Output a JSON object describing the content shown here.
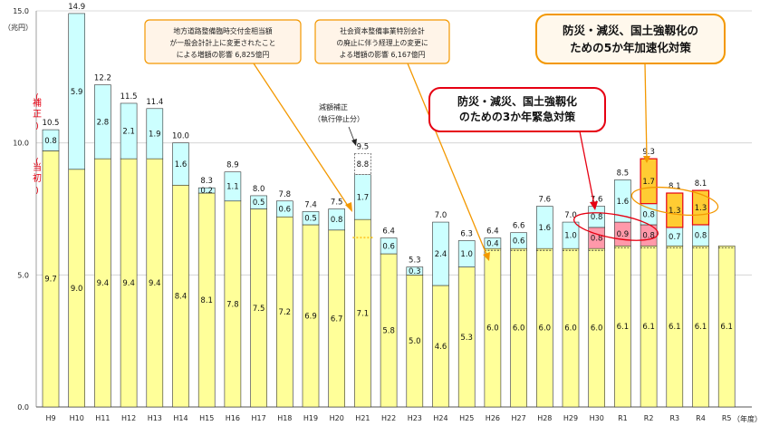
{
  "chart_data": {
    "type": "bar",
    "title": "",
    "y_unit": "（兆円）",
    "x_suffix": "（年度）",
    "ylim": [
      0,
      15
    ],
    "yticks": [
      "0.0",
      "5.0",
      "10.0",
      "15.0"
    ],
    "categories": [
      "H9",
      "H10",
      "H11",
      "H12",
      "H13",
      "H14",
      "H15",
      "H16",
      "H17",
      "H18",
      "H19",
      "H20",
      "H21",
      "H22",
      "H23",
      "H24",
      "H25",
      "H26",
      "H27",
      "H28",
      "H29",
      "H30",
      "R1",
      "R2",
      "R3",
      "R4",
      "R5"
    ],
    "totals": [
      "10.5",
      "14.9",
      "12.2",
      "11.5",
      "11.4",
      "10.0",
      "8.3",
      "8.9",
      "8.0",
      "7.8",
      "7.4",
      "7.5",
      "9.5",
      "6.4",
      "5.3",
      "7.0",
      "6.3",
      "6.4",
      "6.6",
      "7.6",
      "7.0",
      "7.6",
      "8.5",
      "9.3",
      "8.1",
      "8.1",
      ""
    ],
    "series": [
      {
        "name": "当初",
        "values": [
          9.7,
          9.0,
          9.4,
          9.4,
          9.4,
          8.4,
          8.1,
          7.8,
          7.5,
          7.2,
          6.9,
          6.7,
          7.1,
          5.8,
          5.0,
          4.6,
          5.3,
          6.0,
          6.0,
          6.0,
          6.0,
          6.0,
          6.1,
          6.1,
          6.1,
          6.1,
          6.1
        ],
        "labels": [
          "9.7",
          "9.0",
          "9.4",
          "9.4",
          "9.4",
          "8.4",
          "8.1",
          "7.8",
          "7.5",
          "7.2",
          "6.9",
          "6.7",
          "7.1",
          "5.8",
          "5.0",
          "4.6",
          "5.3",
          "6.0",
          "6.0",
          "6.0",
          "6.0",
          "6.0",
          "6.1",
          "6.1",
          "6.1",
          "6.1",
          "6.1"
        ]
      },
      {
        "name": "補正",
        "values": [
          0.8,
          5.9,
          2.8,
          2.1,
          1.9,
          1.6,
          0.2,
          1.1,
          0.5,
          0.6,
          0.5,
          0.8,
          1.7,
          0.6,
          0.3,
          2.4,
          1.0,
          0.4,
          0.6,
          1.6,
          1.0,
          0.8,
          1.6,
          0.8,
          0.7,
          0.8,
          0
        ],
        "labels": [
          "0.8",
          "5.9",
          "2.8",
          "2.1",
          "1.9",
          "1.6",
          "0.2",
          "1.1",
          "0.5",
          "0.6",
          "0.5",
          "0.8",
          "1.7",
          "0.6",
          "0.3",
          "2.4",
          "1.0",
          "0.4",
          "0.6",
          "1.6",
          "1.0",
          "0.8",
          "1.6",
          "0.8",
          "0.7",
          "0.8",
          ""
        ]
      },
      {
        "name": "防災・減災、国土強靱化のための3か年緊急対策",
        "values": [
          0,
          0,
          0,
          0,
          0,
          0,
          0,
          0,
          0,
          0,
          0,
          0,
          0,
          0,
          0,
          0,
          0,
          0,
          0,
          0,
          0,
          0.8,
          0.9,
          0.8,
          0,
          0,
          0
        ],
        "labels": [
          "",
          "",
          "",
          "",
          "",
          "",
          "",
          "",
          "",
          "",
          "",
          "",
          "",
          "",
          "",
          "",
          "",
          "",
          "",
          "",
          "",
          "0.8",
          "0.9",
          "0.8",
          "",
          "",
          ""
        ]
      },
      {
        "name": "防災・減災、国土強靱化のための5か年加速化対策",
        "values": [
          0,
          0,
          0,
          0,
          0,
          0,
          0,
          0,
          0,
          0,
          0,
          0,
          0,
          0,
          0,
          0,
          0,
          0,
          0,
          0,
          0,
          0,
          0,
          1.7,
          1.3,
          1.3,
          0
        ],
        "labels": [
          "",
          "",
          "",
          "",
          "",
          "",
          "",
          "",
          "",
          "",
          "",
          "",
          "",
          "",
          "",
          "",
          "",
          "",
          "",
          "",
          "",
          "",
          "",
          "1.7",
          "1.3",
          "1.3",
          ""
        ]
      },
      {
        "name": "減額補正（執行停止分）",
        "values": [
          0,
          0,
          0,
          0,
          0,
          0,
          0,
          0,
          0,
          0,
          0,
          0,
          0.8,
          0,
          0,
          0,
          0,
          0,
          0,
          0,
          0,
          0,
          0,
          0,
          0,
          0,
          0
        ],
        "labels": [
          "",
          "",
          "",
          "",
          "",
          "",
          "",
          "",
          "",
          "",
          "",
          "",
          "8.8",
          "",
          "",
          "",
          "",
          "",
          "",
          "",
          "",
          "",
          "",
          "",
          "",
          "",
          ""
        ]
      }
    ],
    "side_labels": {
      "hosei": [
        "補",
        "正"
      ],
      "tosho": [
        "当",
        "初"
      ]
    },
    "annotations": {
      "reduction": [
        "減額補正",
        "（執行停止分）"
      ],
      "box1": [
        "地方道路整備臨時交付金相当額",
        "が一般会計計上に変更されたこと",
        "による増額の影響 6,825億円"
      ],
      "box2": [
        "社会資本整備事業特別会計",
        "の廃止に伴う経理上の変更に",
        "よる増額の影響 6,167億円"
      ],
      "box3": [
        "防災・減災、国土強靱化",
        "のための3か年緊急対策"
      ],
      "box4": [
        "防災・減災、国土強靱化の",
        "ための5か年加速化対策"
      ]
    },
    "colors": {
      "tosho": "#ffff99",
      "hosei": "#ccffff",
      "kinkyu": "#ff99aa",
      "kasoku": "#ffcc33",
      "red": "#e60012",
      "orange": "#f39800",
      "bar_edge": "#333333"
    }
  }
}
